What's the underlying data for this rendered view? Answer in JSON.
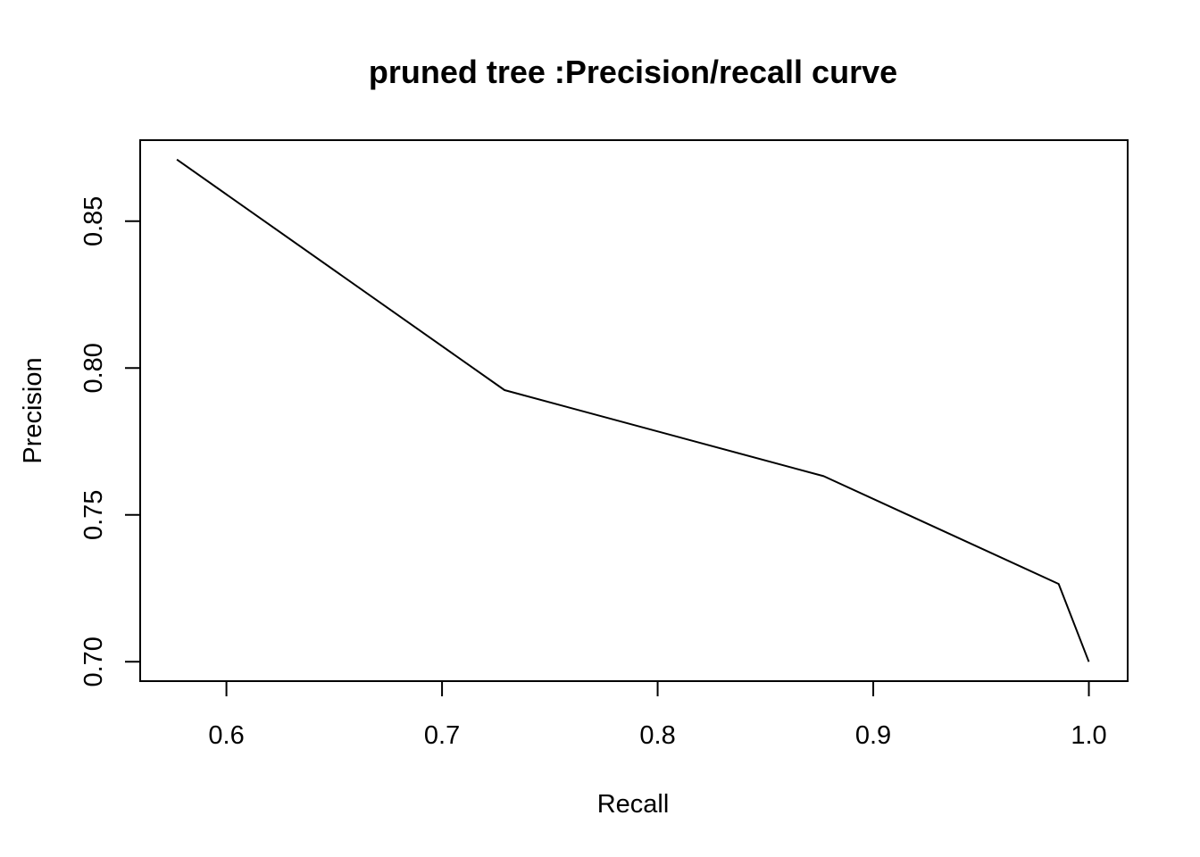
{
  "chart_data": {
    "type": "line",
    "title": "pruned tree :Precision/recall curve",
    "xlabel": "Recall",
    "ylabel": "Precision",
    "xlim": [
      0.56,
      1.018
    ],
    "ylim": [
      0.6934,
      0.8776
    ],
    "x_ticks": [
      0.6,
      0.7,
      0.8,
      0.9,
      1.0
    ],
    "x_tick_labels": [
      "0.6",
      "0.7",
      "0.8",
      "0.9",
      "1.0"
    ],
    "y_ticks": [
      0.7,
      0.75,
      0.8,
      0.85
    ],
    "y_tick_labels": [
      "0.70",
      "0.75",
      "0.80",
      "0.85"
    ],
    "grid": false,
    "legend": "none",
    "line_color": "#000000",
    "series": [
      {
        "x": [
          0.577,
          0.729,
          0.877,
          0.986,
          1.0
        ],
        "y": [
          0.871,
          0.7925,
          0.7632,
          0.7265,
          0.7
        ]
      }
    ]
  }
}
